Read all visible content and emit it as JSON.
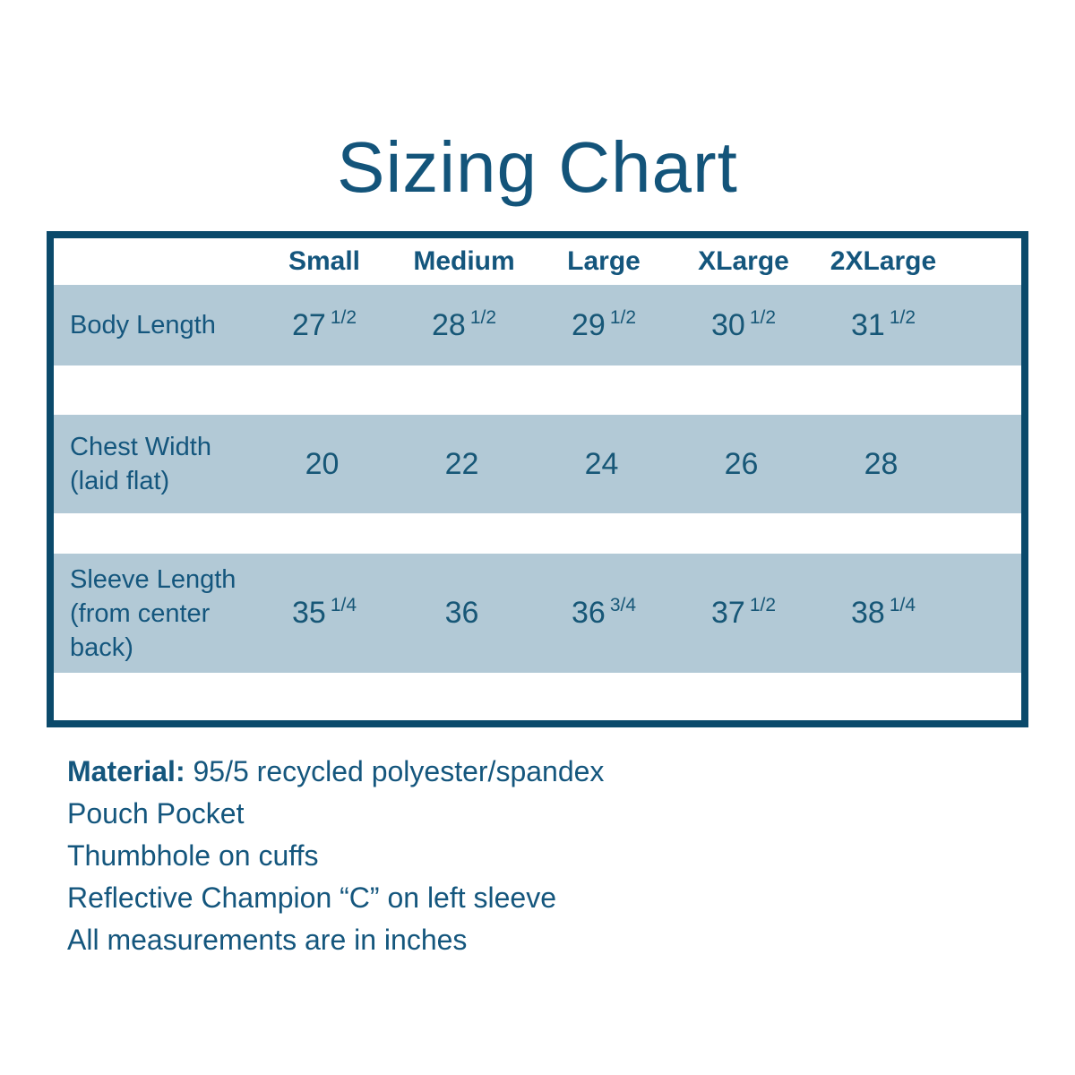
{
  "title": "Sizing Chart",
  "colors": {
    "background": "#FFFFFF",
    "text": "#14567D",
    "table_border": "#0B4A6B",
    "row_band": "#B2C9D6"
  },
  "table": {
    "headers": [
      "Small",
      "Medium",
      "Large",
      "XLarge",
      "2XLarge"
    ],
    "rows": [
      {
        "label": "Body Length",
        "values": [
          {
            "whole": "27",
            "frac": "1/2"
          },
          {
            "whole": "28",
            "frac": "1/2"
          },
          {
            "whole": "29",
            "frac": "1/2"
          },
          {
            "whole": "30",
            "frac": "1/2"
          },
          {
            "whole": "31",
            "frac": "1/2"
          }
        ]
      },
      {
        "label": "Chest Width (laid flat)",
        "values": [
          {
            "whole": "20",
            "frac": ""
          },
          {
            "whole": "22",
            "frac": ""
          },
          {
            "whole": "24",
            "frac": ""
          },
          {
            "whole": "26",
            "frac": ""
          },
          {
            "whole": "28",
            "frac": ""
          }
        ]
      },
      {
        "label": "Sleeve Length (from center back)",
        "values": [
          {
            "whole": "35",
            "frac": "1/4"
          },
          {
            "whole": "36",
            "frac": ""
          },
          {
            "whole": "36",
            "frac": "3/4"
          },
          {
            "whole": "37",
            "frac": "1/2"
          },
          {
            "whole": "38",
            "frac": "1/4"
          }
        ]
      }
    ]
  },
  "notes": {
    "material_label": "Material:",
    "material_value": " 95/5 recycled polyester/spandex",
    "lines": [
      "Pouch Pocket",
      "Thumbhole on cuffs",
      "Reflective Champion “C” on left sleeve",
      "All measurements are in inches"
    ]
  },
  "chart_data": {
    "type": "table",
    "title": "Sizing Chart",
    "columns": [
      "Small",
      "Medium",
      "Large",
      "XLarge",
      "2XLarge"
    ],
    "rows": [
      {
        "label": "Body Length",
        "values": [
          27.5,
          28.5,
          29.5,
          30.5,
          31.5
        ]
      },
      {
        "label": "Chest Width (laid flat)",
        "values": [
          20,
          22,
          24,
          26,
          28
        ]
      },
      {
        "label": "Sleeve Length (from center back)",
        "values": [
          35.25,
          36,
          36.75,
          37.5,
          38.25
        ]
      }
    ],
    "units": "inches"
  }
}
